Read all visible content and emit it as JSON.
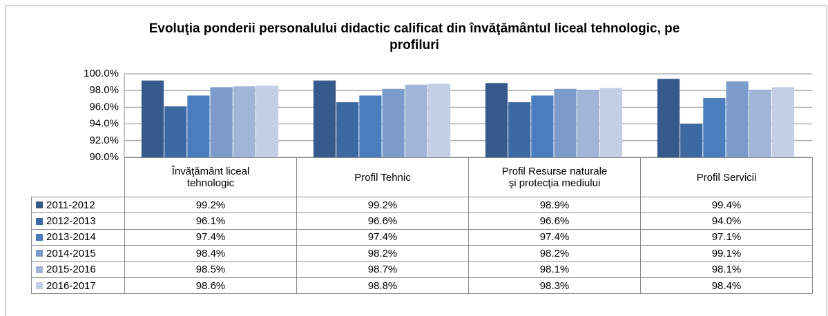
{
  "chart_data": {
    "type": "bar",
    "title": "Evoluţia ponderii personalului didactic calificat din învăţământul liceal tehnologic, pe profiluri",
    "categories": [
      "Învăţământ liceal tehnologic",
      "Profil Tehnic",
      "Profil Resurse naturale şi protecţia mediului",
      "Profil Servicii"
    ],
    "series": [
      {
        "name": "2011-2012",
        "color": "#375a8c",
        "values": [
          99.2,
          99.2,
          98.9,
          99.4
        ],
        "value_labels": [
          "99.2%",
          "99.2%",
          "98.9%",
          "99.4%"
        ]
      },
      {
        "name": "2012-2013",
        "color": "#3d69a2",
        "values": [
          96.1,
          96.6,
          96.6,
          94.0
        ],
        "value_labels": [
          "96.1%",
          "96.6%",
          "96.6%",
          "94.0%"
        ]
      },
      {
        "name": "2013-2014",
        "color": "#4a7dbd",
        "values": [
          97.4,
          97.4,
          97.4,
          97.1
        ],
        "value_labels": [
          "97.4%",
          "97.4%",
          "97.4%",
          "97.1%"
        ]
      },
      {
        "name": "2014-2015",
        "color": "#7b9bca",
        "values": [
          98.4,
          98.2,
          98.2,
          99.1
        ],
        "value_labels": [
          "98.4%",
          "98.2%",
          "98.2%",
          "99.1%"
        ]
      },
      {
        "name": "2015-2016",
        "color": "#a2b5d8",
        "values": [
          98.5,
          98.7,
          98.1,
          98.1
        ],
        "value_labels": [
          "98.5%",
          "98.7%",
          "98.1%",
          "98.1%"
        ]
      },
      {
        "name": "2016-2017",
        "color": "#c4cfe5",
        "values": [
          98.6,
          98.8,
          98.3,
          98.4
        ],
        "value_labels": [
          "98.6%",
          "98.8%",
          "98.3%",
          "98.4%"
        ]
      }
    ],
    "ylim": [
      90,
      100
    ],
    "yticks": [
      {
        "value": 90,
        "label": "90.0%"
      },
      {
        "value": 92,
        "label": "92.0%"
      },
      {
        "value": 94,
        "label": "94.0%"
      },
      {
        "value": 96,
        "label": "96.0%"
      },
      {
        "value": 98,
        "label": "98.0%"
      },
      {
        "value": 100,
        "label": "100.0%"
      }
    ],
    "grid": true
  }
}
